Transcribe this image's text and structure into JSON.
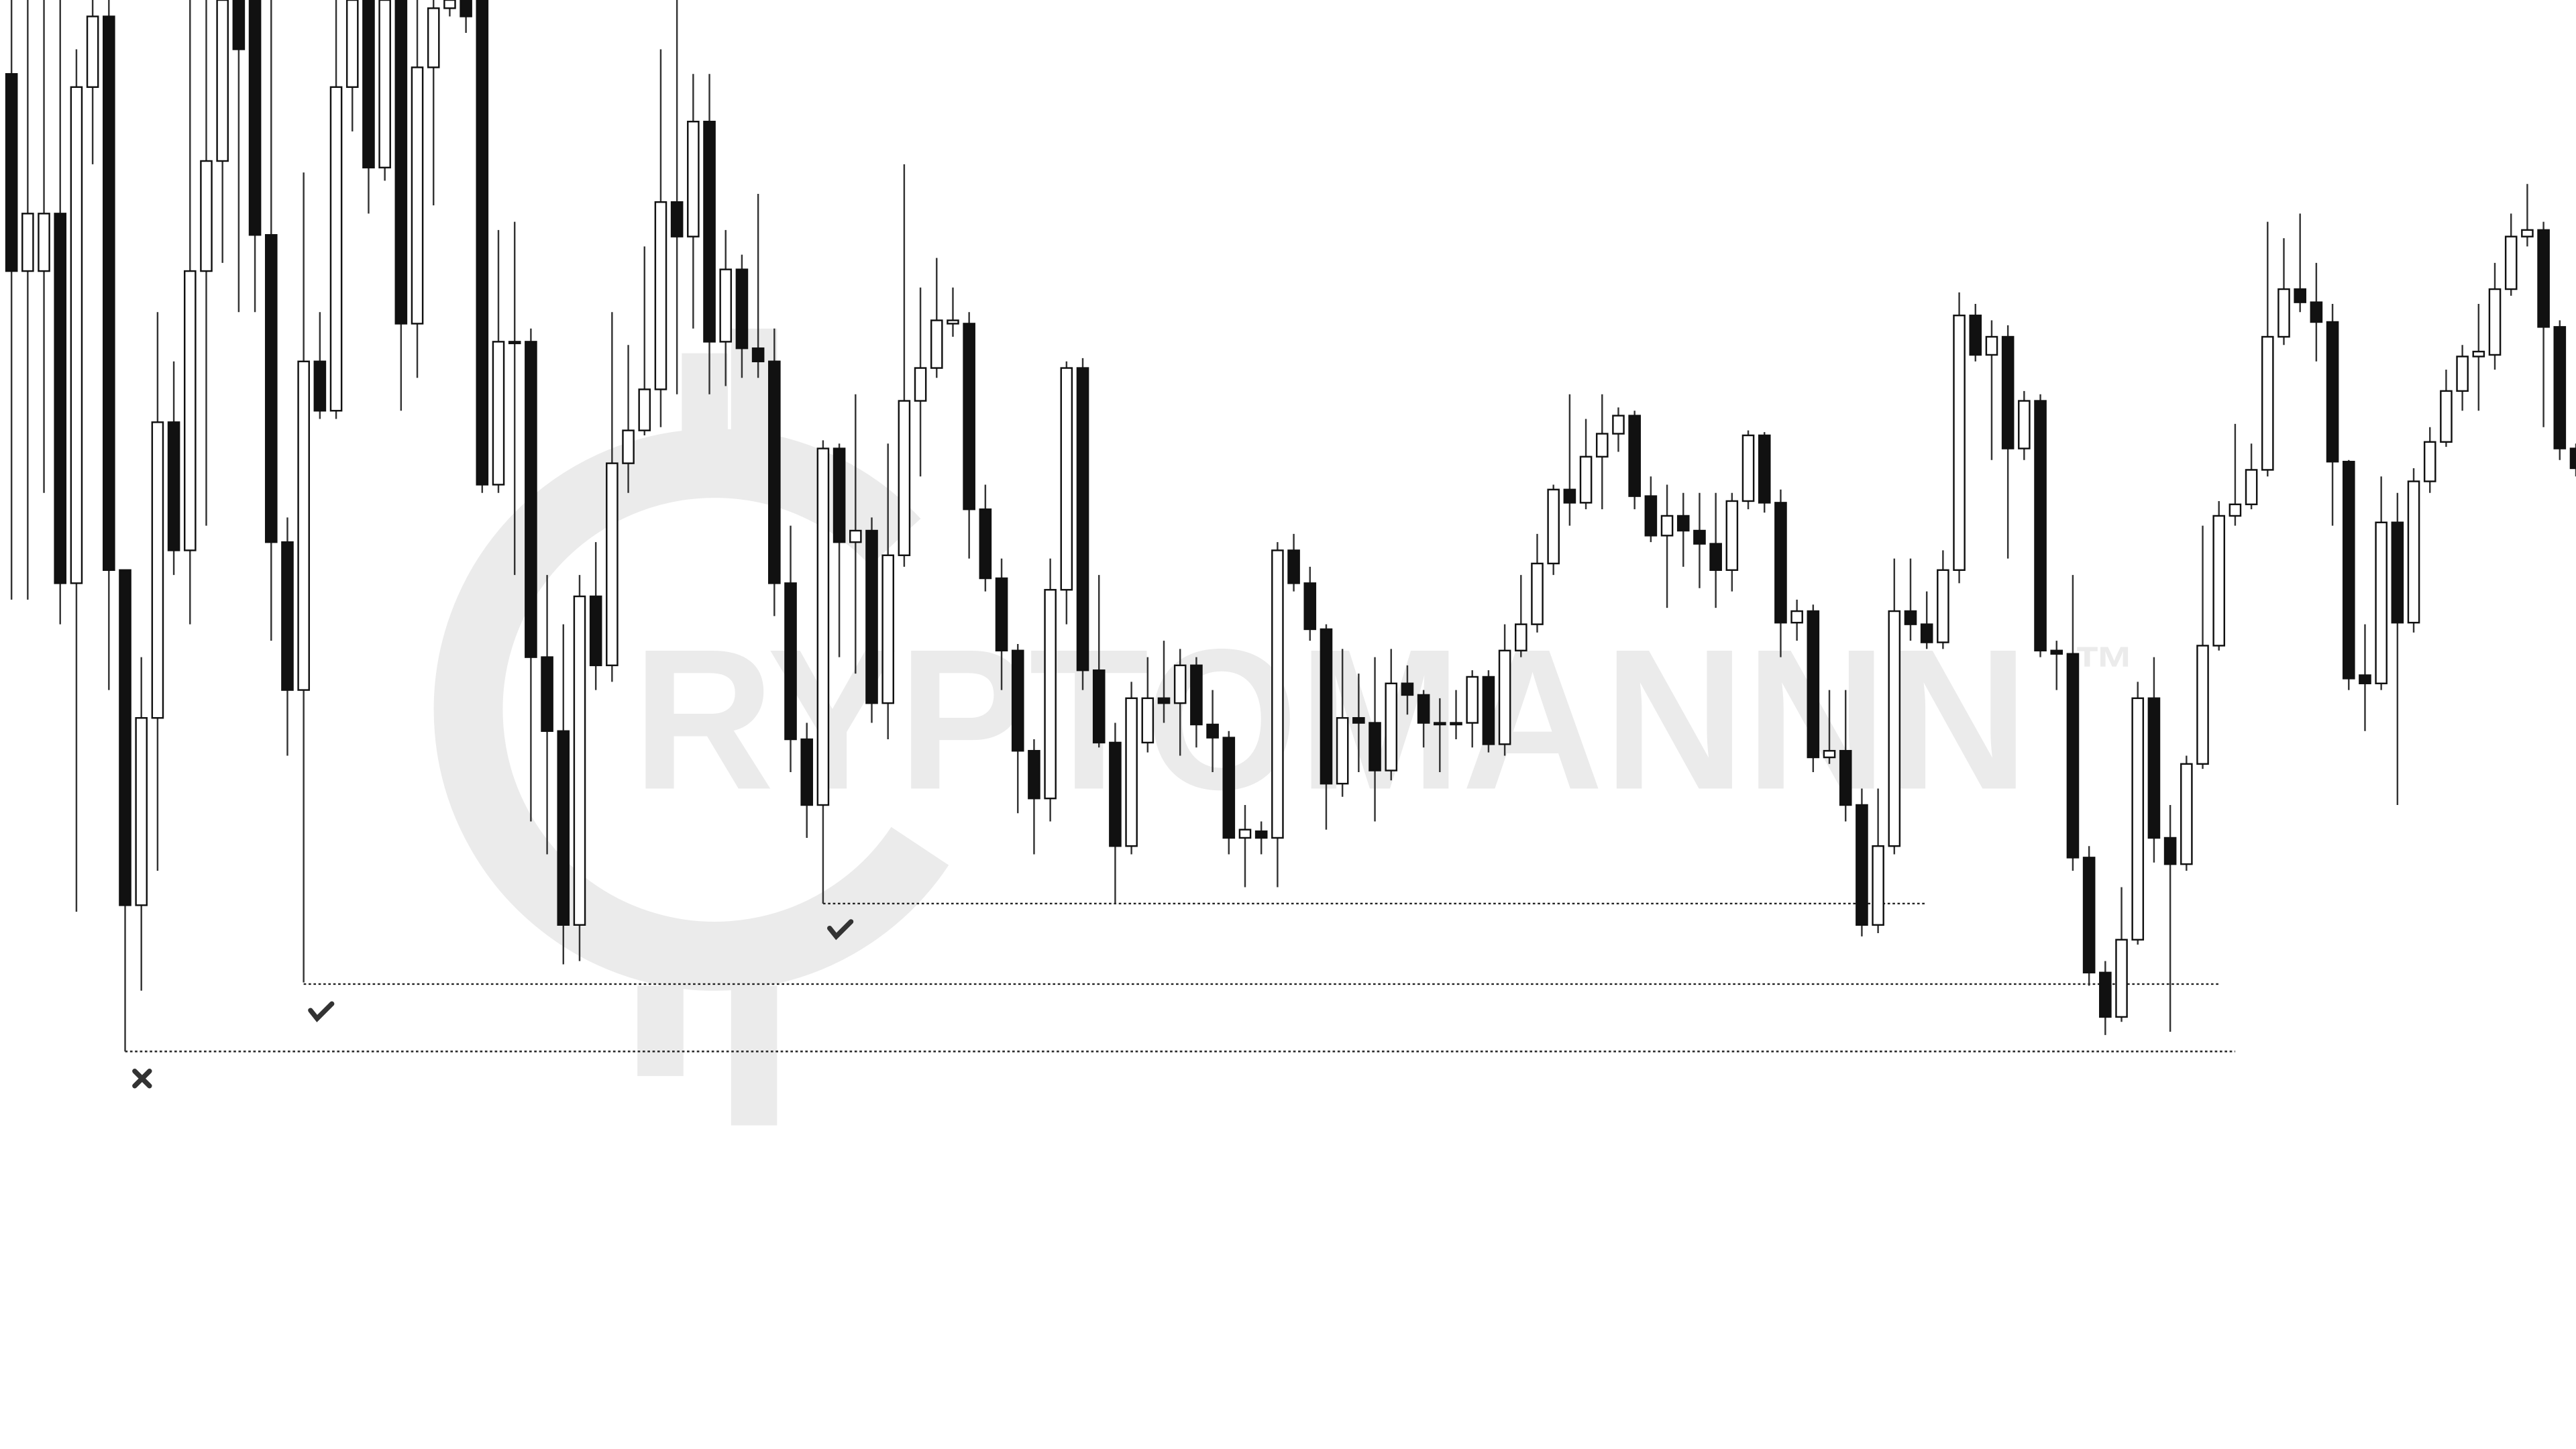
{
  "chart_data": {
    "type": "candlestick",
    "watermark": "RYPTOMANNN",
    "trademark": "™",
    "up_color": "#ffffff",
    "down_color": "#111111",
    "ylim": [
      18,
      900
    ],
    "open": [
      855,
      735,
      735,
      770,
      545,
      847,
      890,
      553,
      349,
      463,
      643,
      565,
      735,
      802,
      900,
      900,
      757,
      570,
      480,
      680,
      650,
      847,
      900,
      798,
      900,
      703,
      859,
      895,
      900,
      900,
      605,
      691,
      692,
      500,
      455,
      337,
      537,
      495,
      618,
      638,
      663,
      777,
      756,
      826,
      692,
      736,
      688,
      680,
      545,
      450,
      410,
      627,
      570,
      577,
      472,
      562,
      656,
      676,
      703,
      703,
      590,
      548,
      504,
      443,
      414,
      541,
      676,
      492,
      448,
      385,
      448,
      475,
      472,
      495,
      459,
      451,
      390,
      394,
      390,
      565,
      545,
      517,
      423,
      463,
      460,
      431,
      484,
      477,
      459,
      459,
      460,
      488,
      447,
      504,
      520,
      557,
      602,
      594,
      622,
      636,
      647,
      598,
      574,
      586,
      577,
      569,
      553,
      595,
      635,
      594,
      521,
      528,
      439,
      443,
      410,
      337,
      385,
      528,
      520,
      509,
      553,
      708,
      684,
      695,
      627,
      656,
      504,
      502,
      378,
      308,
      281,
      328,
      475,
      390,
      374,
      435,
      507,
      586,
      593,
      614,
      695,
      724,
      716,
      704,
      619,
      489,
      484,
      582,
      521,
      607,
      631,
      662,
      683,
      684,
      724,
      756,
      760,
      701,
      627
    ],
    "high": [
      900,
      900,
      900,
      900,
      870,
      900,
      900,
      553,
      500,
      710,
      680,
      900,
      900,
      900,
      900,
      900,
      900,
      585,
      795,
      710,
      900,
      900,
      900,
      900,
      900,
      900,
      900,
      900,
      900,
      900,
      760,
      765,
      700,
      550,
      520,
      550,
      570,
      710,
      690,
      750,
      870,
      900,
      855,
      855,
      760,
      745,
      782,
      700,
      580,
      460,
      632,
      630,
      660,
      585,
      630,
      800,
      725,
      743,
      725,
      710,
      605,
      560,
      508,
      450,
      560,
      680,
      682,
      550,
      460,
      485,
      500,
      510,
      505,
      500,
      480,
      455,
      410,
      400,
      570,
      575,
      555,
      520,
      505,
      490,
      500,
      505,
      495,
      480,
      475,
      480,
      492,
      492,
      520,
      550,
      575,
      605,
      660,
      645,
      660,
      652,
      650,
      610,
      605,
      600,
      600,
      600,
      600,
      638,
      637,
      602,
      535,
      532,
      480,
      480,
      420,
      420,
      560,
      560,
      540,
      565,
      722,
      715,
      705,
      702,
      662,
      660,
      510,
      550,
      385,
      315,
      360,
      485,
      500,
      410,
      440,
      580,
      595,
      642,
      630,
      765,
      755,
      770,
      740,
      715,
      620,
      520,
      610,
      600,
      615,
      640,
      675,
      690,
      715,
      740,
      770,
      788,
      765,
      705,
      630
    ],
    "low": [
      535,
      535,
      600,
      520,
      345,
      800,
      480,
      260,
      297,
      370,
      550,
      520,
      580,
      740,
      710,
      710,
      510,
      440,
      302,
      645,
      645,
      820,
      770,
      790,
      650,
      670,
      775,
      890,
      880,
      600,
      600,
      550,
      400,
      380,
      313,
      315,
      480,
      485,
      600,
      635,
      640,
      660,
      700,
      660,
      665,
      670,
      670,
      525,
      430,
      390,
      350,
      500,
      490,
      460,
      450,
      555,
      610,
      670,
      695,
      560,
      540,
      480,
      405,
      380,
      400,
      520,
      480,
      445,
      350,
      380,
      442,
      460,
      440,
      445,
      430,
      380,
      360,
      380,
      360,
      540,
      510,
      395,
      415,
      430,
      400,
      425,
      465,
      445,
      430,
      450,
      445,
      442,
      440,
      500,
      515,
      550,
      580,
      590,
      590,
      625,
      590,
      570,
      530,
      555,
      542,
      530,
      540,
      590,
      588,
      500,
      510,
      430,
      435,
      400,
      330,
      332,
      380,
      510,
      505,
      505,
      545,
      680,
      620,
      560,
      620,
      500,
      480,
      370,
      300,
      270,
      278,
      325,
      375,
      272,
      370,
      432,
      504,
      580,
      590,
      610,
      690,
      710,
      680,
      580,
      480,
      455,
      480,
      410,
      515,
      600,
      628,
      650,
      650,
      675,
      720,
      750,
      640,
      620,
      610
    ],
    "close": [
      735,
      770,
      770,
      545,
      847,
      890,
      553,
      349,
      463,
      643,
      565,
      735,
      802,
      900,
      870,
      757,
      570,
      480,
      680,
      650,
      847,
      900,
      798,
      900,
      703,
      859,
      895,
      900,
      890,
      605,
      692,
      692,
      500,
      455,
      337,
      537,
      495,
      618,
      638,
      663,
      777,
      756,
      826,
      692,
      736,
      688,
      680,
      545,
      450,
      410,
      627,
      570,
      577,
      472,
      562,
      656,
      676,
      705,
      705,
      590,
      548,
      504,
      443,
      414,
      541,
      676,
      492,
      448,
      385,
      475,
      475,
      472,
      495,
      459,
      451,
      390,
      395,
      390,
      565,
      545,
      517,
      423,
      463,
      460,
      431,
      484,
      477,
      460,
      460,
      460,
      488,
      447,
      504,
      520,
      557,
      602,
      594,
      622,
      636,
      647,
      598,
      574,
      586,
      577,
      569,
      553,
      595,
      635,
      594,
      521,
      528,
      439,
      443,
      410,
      337,
      385,
      528,
      520,
      509,
      553,
      708,
      684,
      695,
      627,
      656,
      504,
      502,
      378,
      308,
      281,
      328,
      475,
      390,
      374,
      435,
      507,
      586,
      593,
      614,
      695,
      724,
      716,
      704,
      619,
      487,
      484,
      582,
      521,
      607,
      631,
      662,
      683,
      686,
      724,
      756,
      760,
      701,
      627,
      615
    ],
    "levels": [
      {
        "value": 350,
        "x": [
          50,
          118
        ]
      },
      {
        "value": 301,
        "x": [
          18,
          136
        ]
      },
      {
        "value": 260,
        "x": [
          7,
          137
        ]
      }
    ]
  }
}
